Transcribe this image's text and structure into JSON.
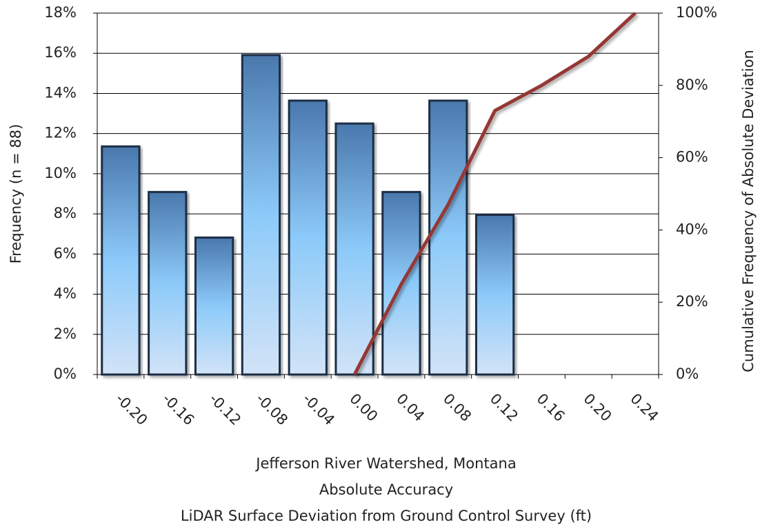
{
  "chart_data": {
    "type": "bar",
    "x_label": [
      "Jefferson River Watershed, Montana",
      "Absolute Accuracy",
      "LiDAR Surface Deviation from Ground Control Survey (ft)"
    ],
    "y_label": "Frequency (n = 88)",
    "y2_label": "Cumulative Frequency of Absolute Deviation",
    "categories": [
      "-0.20",
      "-0.16",
      "-0.12",
      "-0.08",
      "-0.04",
      "0.00",
      "0.04",
      "0.08",
      "0.12",
      "0.16",
      "0.20",
      "0.24"
    ],
    "series": [
      {
        "type": "bar",
        "color": "#6fa8dc",
        "values": [
          11.36,
          9.09,
          6.82,
          15.91,
          13.64,
          12.5,
          9.09,
          13.64,
          7.95,
          0,
          0,
          0
        ]
      },
      {
        "type": "line",
        "axis": "y2",
        "color": "#953735",
        "values": [
          null,
          null,
          null,
          null,
          null,
          0,
          25,
          47,
          73,
          80,
          88,
          100
        ]
      }
    ],
    "ylim": [
      0,
      18
    ],
    "yticks": [
      {
        "value": 0,
        "label": "0%"
      },
      {
        "value": 2,
        "label": "2%"
      },
      {
        "value": 4,
        "label": "4%"
      },
      {
        "value": 6,
        "label": "6%"
      },
      {
        "value": 8,
        "label": "8%"
      },
      {
        "value": 10,
        "label": "10%"
      },
      {
        "value": 12,
        "label": "12%"
      },
      {
        "value": 14,
        "label": "14%"
      },
      {
        "value": 16,
        "label": "16%"
      },
      {
        "value": 18,
        "label": "18%"
      }
    ],
    "y2lim": [
      0,
      100
    ],
    "y2ticks": [
      {
        "value": 0,
        "label": "0%"
      },
      {
        "value": 20,
        "label": "20%"
      },
      {
        "value": 40,
        "label": "40%"
      },
      {
        "value": 60,
        "label": "60%"
      },
      {
        "value": 80,
        "label": "80%"
      },
      {
        "value": 100,
        "label": "100%"
      }
    ],
    "grid": true
  }
}
